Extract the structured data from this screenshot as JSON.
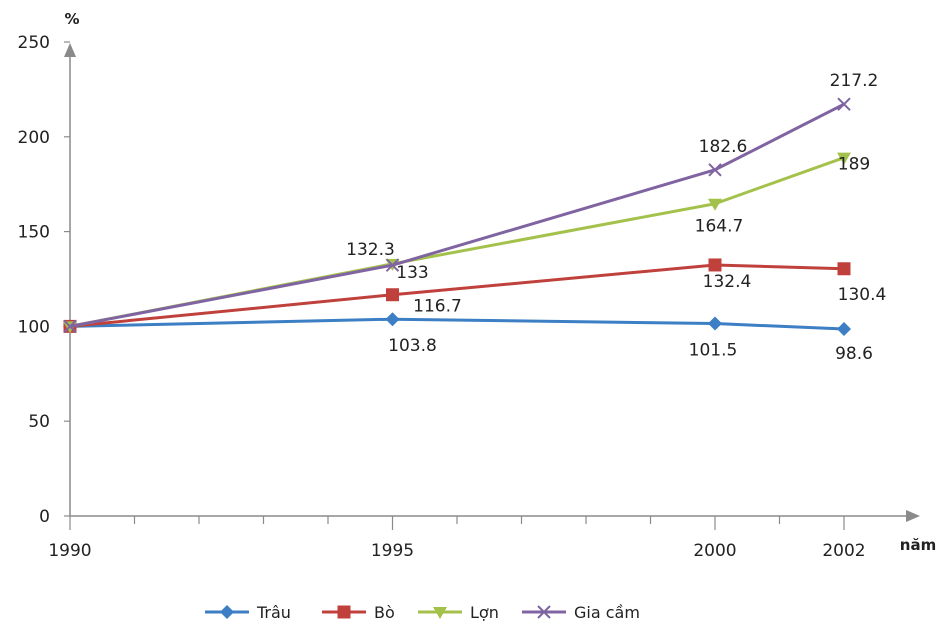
{
  "chart_data": {
    "type": "line",
    "title": "",
    "ylabel": "%",
    "xlabel": "năm",
    "x": [
      1990,
      1995,
      2000,
      2002
    ],
    "ylim": [
      0,
      250
    ],
    "yticks": [
      0,
      50,
      100,
      150,
      200,
      250
    ],
    "grid": false,
    "legend_position": "bottom",
    "series": [
      {
        "name": "Trâu",
        "color": "#3c7fc4",
        "marker": "diamond",
        "values": [
          100,
          103.8,
          101.5,
          98.6
        ],
        "labels": [
          "",
          "103.8",
          "101.5",
          "98.6"
        ]
      },
      {
        "name": "Bò",
        "color": "#c0413c",
        "marker": "square",
        "values": [
          100,
          116.7,
          132.4,
          130.4
        ],
        "labels": [
          "",
          "116.7",
          "132.4",
          "130.4"
        ]
      },
      {
        "name": "Lợn",
        "color": "#a4c24b",
        "marker": "triangle",
        "values": [
          100,
          133,
          164.7,
          189
        ],
        "labels": [
          "",
          "133",
          "164.7",
          "189"
        ]
      },
      {
        "name": "Gia cầm",
        "color": "#8064a2",
        "marker": "x",
        "values": [
          100,
          132.3,
          182.6,
          217.2
        ],
        "labels": [
          "",
          "132.3",
          "182.6",
          "217.2"
        ]
      }
    ]
  }
}
